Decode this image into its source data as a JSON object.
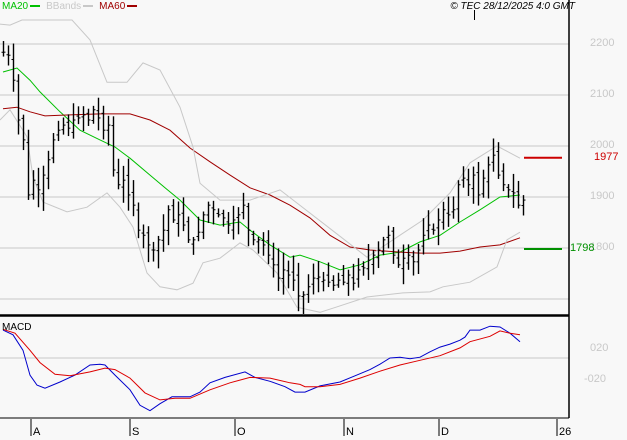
{
  "legend": {
    "ma20": {
      "label": "MA20",
      "color": "#00c000"
    },
    "bbands": {
      "label": "BBands",
      "color": "#c8c8c8"
    },
    "ma60": {
      "label": "MA60",
      "color": "#a00000"
    }
  },
  "copyright": "© TEC 28/12/2025 4:0 GMT",
  "levels": [
    {
      "label": "1977",
      "value": 1977,
      "color": "#cc0000"
    },
    {
      "label": "1798",
      "value": 1798,
      "color": "#009000"
    }
  ],
  "macd_title": "MACD",
  "chart_data": [
    {
      "type": "ohlc",
      "title": "Price",
      "ylim": [
        1650,
        2275
      ],
      "yticks": [
        {
          "value": 2200,
          "label": "2200"
        },
        {
          "value": 2100,
          "label": "2100"
        },
        {
          "value": 2000,
          "label": "2000"
        },
        {
          "value": 1900,
          "label": "1900"
        },
        {
          "value": 1800,
          "label": "1800"
        },
        {
          "value": 1700,
          "label": ""
        }
      ],
      "xticks": [
        {
          "index": 5.6,
          "label": "A"
        },
        {
          "index": 25.4,
          "label": "S"
        },
        {
          "index": 46.4,
          "label": "O"
        },
        {
          "index": 68.2,
          "label": "N"
        },
        {
          "index": 87.2,
          "label": "D"
        },
        {
          "index": 110.8,
          "label": "26"
        }
      ],
      "closes": [
        2184,
        2178,
        2129,
        2051,
        2012,
        1904,
        1933,
        1914,
        1943,
        1973,
        2012,
        2031,
        2041,
        2035,
        2051,
        2055,
        2061,
        2051,
        2071,
        2055,
        2031,
        2041,
        1953,
        1924,
        1933,
        1904,
        1884,
        1835,
        1825,
        1806,
        1796,
        1816,
        1835,
        1875,
        1855,
        1865,
        1845,
        1816,
        1816,
        1831,
        1865,
        1884,
        1875,
        1865,
        1859,
        1845,
        1855,
        1865,
        1884,
        1835,
        1816,
        1816,
        1806,
        1786,
        1767,
        1741,
        1757,
        1747,
        1737,
        1706,
        1708,
        1724,
        1741,
        1743,
        1737,
        1733,
        1727,
        1737,
        1733,
        1747,
        1731,
        1757,
        1761,
        1776,
        1786,
        1796,
        1816,
        1825,
        1786,
        1767,
        1780,
        1786,
        1773,
        1796,
        1825,
        1845,
        1835,
        1855,
        1875,
        1865,
        1875,
        1924,
        1937,
        1924,
        1943,
        1904,
        1937,
        1963,
        1982,
        1943,
        1924,
        1914,
        1908,
        1884,
        1894
      ],
      "series": [
        {
          "name": "MA20",
          "color": "#00c000",
          "points": [
            [
              0,
              2145
            ],
            [
              2.8,
              2153
            ],
            [
              5.4,
              2129
            ],
            [
              7.4,
              2106
            ],
            [
              11.4,
              2067
            ],
            [
              15.4,
              2031
            ],
            [
              19.4,
              2012
            ],
            [
              22.4,
              1998
            ],
            [
              25.4,
              1976
            ],
            [
              29.4,
              1943
            ],
            [
              32.4,
              1918
            ],
            [
              35.4,
              1894
            ],
            [
              39.4,
              1855
            ],
            [
              43.4,
              1845
            ],
            [
              47.4,
              1851
            ],
            [
              49.4,
              1835
            ],
            [
              53.4,
              1806
            ],
            [
              57.4,
              1782
            ],
            [
              59.4,
              1786
            ],
            [
              63.4,
              1773
            ],
            [
              67.4,
              1757
            ],
            [
              71.4,
              1767
            ],
            [
              75.4,
              1786
            ],
            [
              79.4,
              1792
            ],
            [
              83.4,
              1812
            ],
            [
              87.4,
              1825
            ],
            [
              91.4,
              1851
            ],
            [
              95.4,
              1875
            ],
            [
              99.4,
              1900
            ],
            [
              103.4,
              1904
            ]
          ]
        },
        {
          "name": "MA60",
          "color": "#a00000",
          "points": [
            [
              0,
              2073
            ],
            [
              2.8,
              2076
            ],
            [
              5.4,
              2067
            ],
            [
              8.4,
              2059
            ],
            [
              13.4,
              2061
            ],
            [
              19.4,
              2063
            ],
            [
              25.4,
              2063
            ],
            [
              29.4,
              2051
            ],
            [
              33.4,
              2031
            ],
            [
              37.4,
              1996
            ],
            [
              41.4,
              1969
            ],
            [
              45.4,
              1943
            ],
            [
              49.4,
              1918
            ],
            [
              53.4,
              1904
            ],
            [
              57.4,
              1884
            ],
            [
              61.4,
              1859
            ],
            [
              65.4,
              1825
            ],
            [
              69.4,
              1802
            ],
            [
              73.4,
              1796
            ],
            [
              79.4,
              1792
            ],
            [
              83.4,
              1790
            ],
            [
              87.4,
              1790
            ],
            [
              91.4,
              1794
            ],
            [
              95.4,
              1802
            ],
            [
              99.4,
              1806
            ],
            [
              103.4,
              1820
            ]
          ]
        },
        {
          "name": "BBands upper",
          "color": "#c8c8c8",
          "points": [
            [
              -0.6,
              2239
            ],
            [
              1.4,
              2237
            ],
            [
              3.8,
              2247
            ],
            [
              13.8,
              2247
            ],
            [
              17.4,
              2208
            ],
            [
              20.8,
              2125
            ],
            [
              24.8,
              2125
            ],
            [
              28,
              2163
            ],
            [
              31.4,
              2149
            ],
            [
              35.4,
              2076
            ],
            [
              38,
              1998
            ],
            [
              39.4,
              1927
            ],
            [
              43.4,
              1894
            ],
            [
              49.4,
              1894
            ],
            [
              55.4,
              1914
            ],
            [
              66.6,
              1829
            ],
            [
              72.8,
              1782
            ],
            [
              80,
              1829
            ],
            [
              84,
              1855
            ],
            [
              89.4,
              1908
            ],
            [
              93.4,
              1967
            ],
            [
              98.8,
              2000
            ],
            [
              103.4,
              1976
            ]
          ]
        },
        {
          "name": "BBands lower",
          "color": "#c8c8c8",
          "points": [
            [
              -0.6,
              2051
            ],
            [
              1.4,
              2071
            ],
            [
              4.8,
              2018
            ],
            [
              6,
              1939
            ],
            [
              8,
              1890
            ],
            [
              12.8,
              1871
            ],
            [
              16.8,
              1880
            ],
            [
              20.8,
              1908
            ],
            [
              23.4,
              1880
            ],
            [
              26,
              1841
            ],
            [
              28.8,
              1751
            ],
            [
              31.4,
              1724
            ],
            [
              34.8,
              1718
            ],
            [
              38,
              1731
            ],
            [
              40,
              1771
            ],
            [
              43.4,
              1780
            ],
            [
              47.4,
              1810
            ],
            [
              50,
              1796
            ],
            [
              54.8,
              1751
            ],
            [
              58.8,
              1684
            ],
            [
              63.4,
              1674
            ],
            [
              66.6,
              1684
            ],
            [
              72.8,
              1704
            ],
            [
              80,
              1712
            ],
            [
              85.4,
              1714
            ],
            [
              88,
              1724
            ],
            [
              93.4,
              1733
            ],
            [
              98.8,
              1763
            ],
            [
              100.8,
              1816
            ],
            [
              103.4,
              1831
            ]
          ]
        }
      ]
    },
    {
      "type": "line",
      "title": "MACD",
      "ylim": [
        -0.57,
        0.74
      ],
      "yticks": [
        {
          "value": 0.2,
          "label": "020"
        },
        {
          "value": -0.2,
          "label": "-020"
        }
      ],
      "gridline": 0.2,
      "series": [
        {
          "name": "MACD",
          "color": "#0000cc",
          "points": [
            [
              0,
              0.56
            ],
            [
              2,
              0.5
            ],
            [
              4,
              0.3
            ],
            [
              5.4,
              -0.02
            ],
            [
              6.8,
              -0.15
            ],
            [
              8.4,
              -0.19
            ],
            [
              11.4,
              -0.11
            ],
            [
              14.4,
              -0.02
            ],
            [
              17.4,
              0.11
            ],
            [
              19.4,
              0.12
            ],
            [
              20.4,
              0.11
            ],
            [
              22.4,
              -0.02
            ],
            [
              25.4,
              -0.21
            ],
            [
              27.4,
              -0.41
            ],
            [
              29.4,
              -0.48
            ],
            [
              31.4,
              -0.39
            ],
            [
              33.8,
              -0.3
            ],
            [
              37.4,
              -0.3
            ],
            [
              39.4,
              -0.24
            ],
            [
              41.4,
              -0.12
            ],
            [
              44.4,
              -0.05
            ],
            [
              48.4,
              0.02
            ],
            [
              50.4,
              -0.05
            ],
            [
              53.4,
              -0.1
            ],
            [
              56.4,
              -0.17
            ],
            [
              58.4,
              -0.24
            ],
            [
              60.4,
              -0.24
            ],
            [
              63.4,
              -0.16
            ],
            [
              67.4,
              -0.11
            ],
            [
              70.4,
              -0.03
            ],
            [
              73.4,
              0.05
            ],
            [
              75.4,
              0.12
            ],
            [
              77.4,
              0.2
            ],
            [
              79.4,
              0.21
            ],
            [
              81.4,
              0.19
            ],
            [
              83.4,
              0.21
            ],
            [
              85.4,
              0.28
            ],
            [
              87.4,
              0.34
            ],
            [
              89.4,
              0.38
            ],
            [
              91.4,
              0.43
            ],
            [
              92.4,
              0.47
            ],
            [
              93.4,
              0.56
            ],
            [
              95.4,
              0.56
            ],
            [
              97.4,
              0.61
            ],
            [
              99.4,
              0.6
            ],
            [
              101.4,
              0.52
            ],
            [
              103.4,
              0.41
            ]
          ]
        },
        {
          "name": "Signal",
          "color": "#dd0000",
          "points": [
            [
              0,
              0.57
            ],
            [
              2.4,
              0.52
            ],
            [
              5.4,
              0.3
            ],
            [
              7.4,
              0.14
            ],
            [
              10.4,
              -0.01
            ],
            [
              13.4,
              -0.03
            ],
            [
              17.4,
              0.02
            ],
            [
              20.4,
              0.07
            ],
            [
              22.4,
              0.05
            ],
            [
              25.4,
              -0.06
            ],
            [
              28.4,
              -0.25
            ],
            [
              31.4,
              -0.34
            ],
            [
              34.4,
              -0.32
            ],
            [
              37.4,
              -0.32
            ],
            [
              41.4,
              -0.21
            ],
            [
              45.4,
              -0.12
            ],
            [
              49.4,
              -0.05
            ],
            [
              53.4,
              -0.06
            ],
            [
              57.4,
              -0.12
            ],
            [
              59.4,
              -0.14
            ],
            [
              60.4,
              -0.17
            ],
            [
              63.4,
              -0.17
            ],
            [
              67.4,
              -0.14
            ],
            [
              71.4,
              -0.06
            ],
            [
              75.4,
              0.03
            ],
            [
              79.4,
              0.11
            ],
            [
              83.4,
              0.17
            ],
            [
              87.4,
              0.23
            ],
            [
              91.4,
              0.33
            ],
            [
              93.4,
              0.41
            ],
            [
              97.4,
              0.48
            ],
            [
              99.4,
              0.55
            ],
            [
              101.4,
              0.52
            ],
            [
              103.4,
              0.5
            ]
          ]
        }
      ]
    }
  ]
}
